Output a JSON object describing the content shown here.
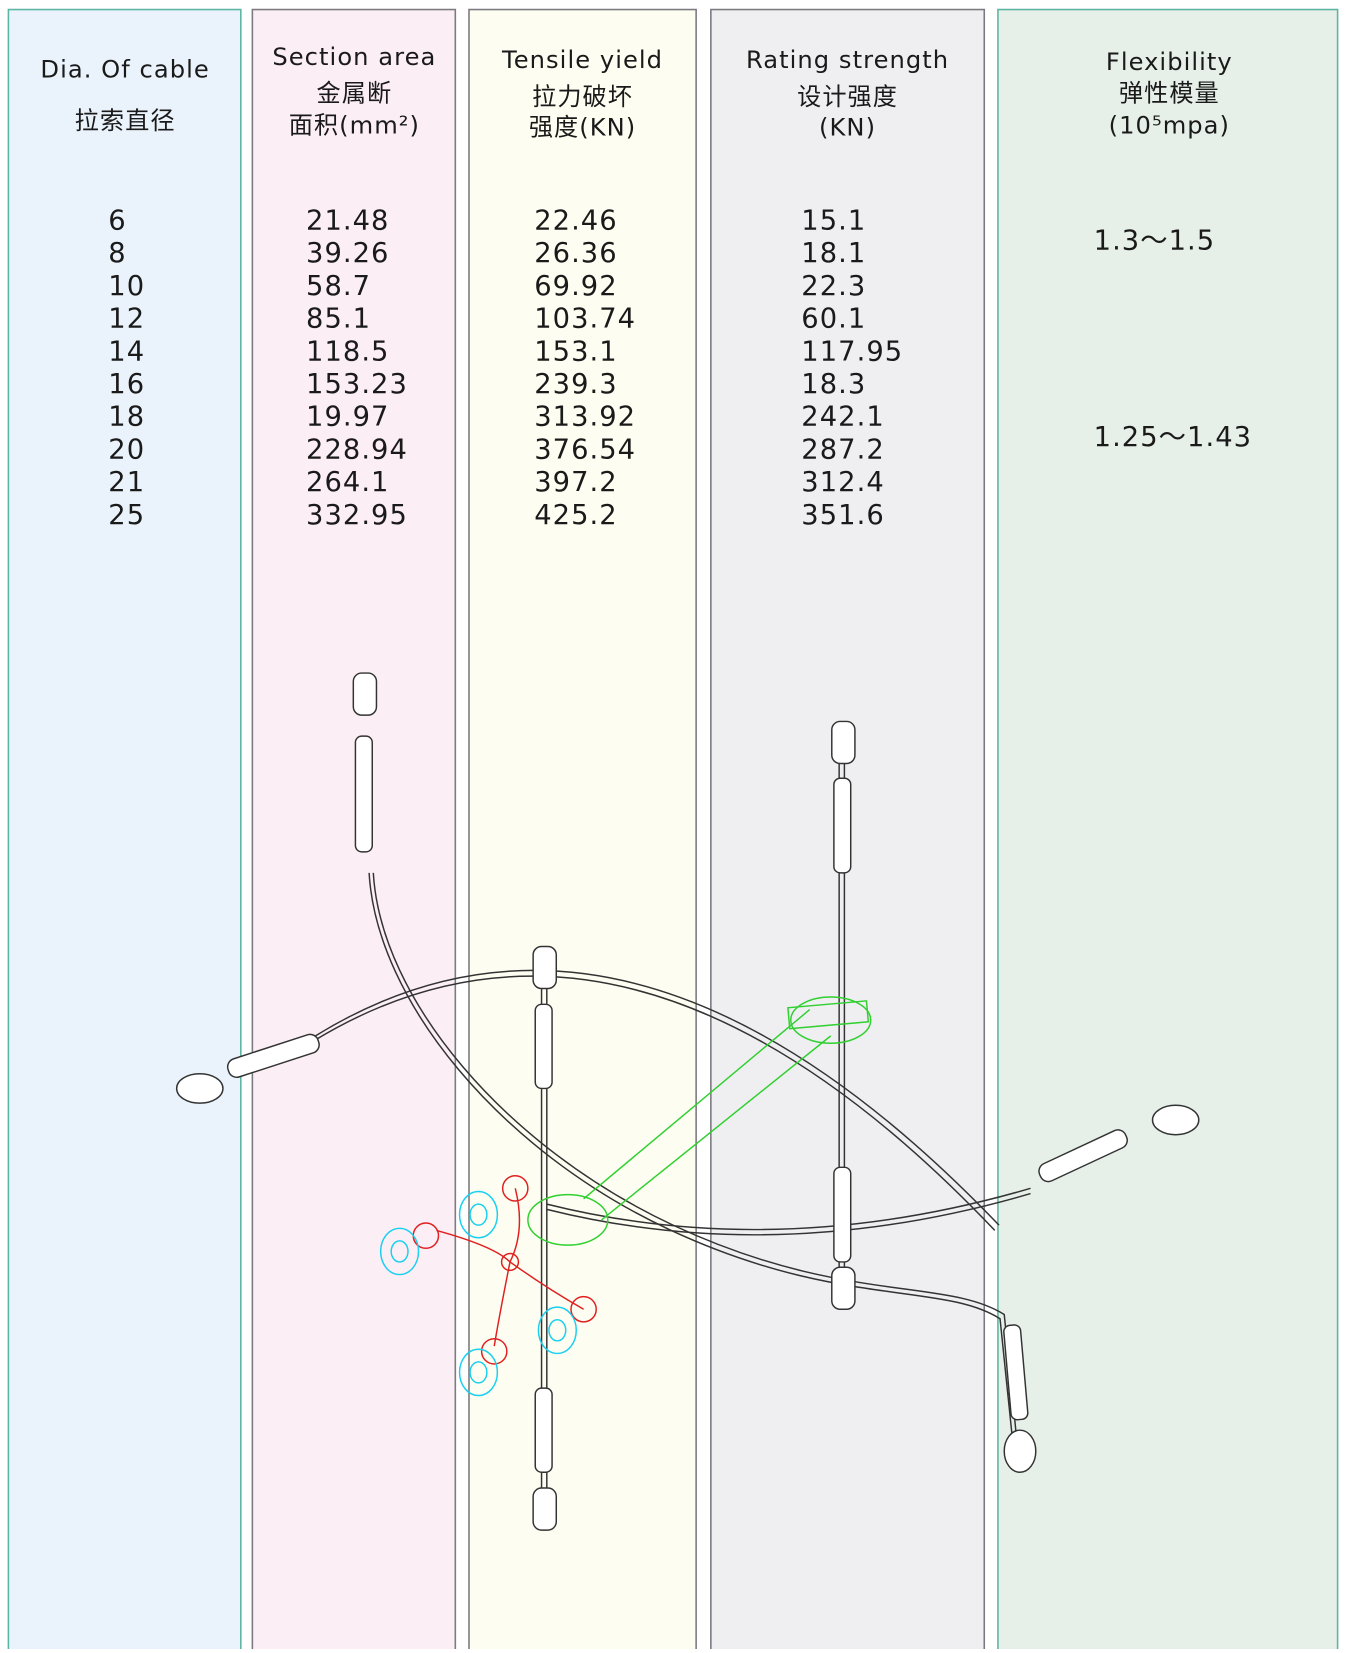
{
  "columns": [
    {
      "header": [
        "Dia. Of cable",
        "拉索直径"
      ],
      "values": [
        "6",
        "8",
        "10",
        "12",
        "14",
        "16",
        "18",
        "20",
        "21",
        "25"
      ]
    },
    {
      "header": [
        "Section area",
        "金属断",
        "面积(mm²)"
      ],
      "values": [
        "21.48",
        "39.26",
        "58.7",
        "85.1",
        "118.5",
        "153.23",
        "19.97",
        "228.94",
        "264.1",
        "332.95"
      ]
    },
    {
      "header": [
        "Tensile yield",
        "拉力破坏",
        "强度(KN)"
      ],
      "values": [
        "22.46",
        "26.36",
        "69.92",
        "103.74",
        "153.1",
        "239.3",
        "313.92",
        "376.54",
        "397.2",
        "425.2"
      ]
    },
    {
      "header": [
        "Rating strength",
        "设计强度",
        "(KN)"
      ],
      "values": [
        "15.1",
        "18.1",
        "22.3",
        "60.1",
        "117.95",
        "18.3",
        "242.1",
        "287.2",
        "312.4",
        "351.6"
      ]
    },
    {
      "header": [
        "Flexibility",
        "弹性模量",
        "(10⁵mpa)"
      ],
      "values": [
        "1.3～1.5",
        "1.25～1.43"
      ]
    }
  ]
}
